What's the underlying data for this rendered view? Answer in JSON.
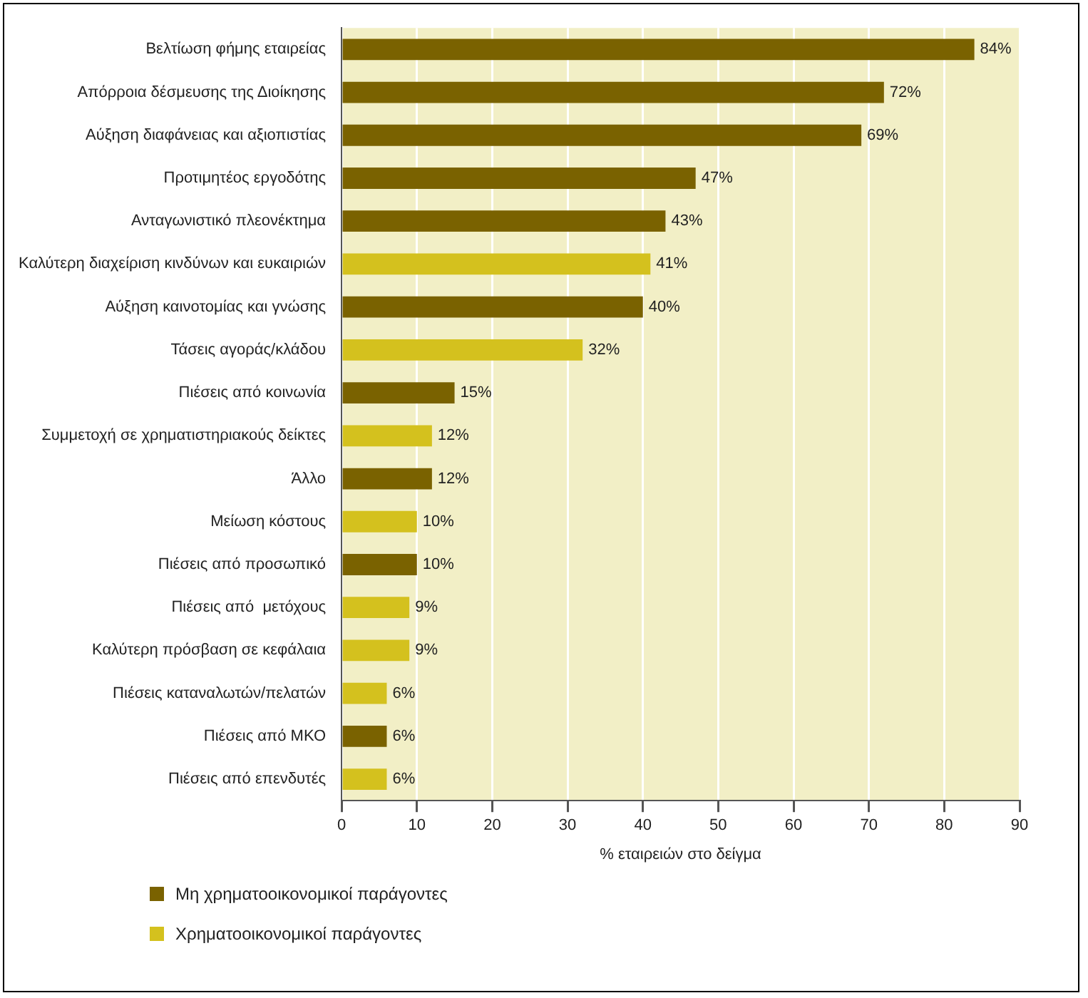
{
  "chart_data": {
    "type": "bar",
    "orientation": "horizontal",
    "xlabel": "% εταιρειών στο δείγμα",
    "categories": [
      "Βελτίωση φήμης εταιρείας",
      "Απόρροια δέσμευσης της Διοίκησης",
      "Αύξηση διαφάνειας και αξιοπιστίας",
      "Προτιμητέος εργοδότης",
      "Ανταγωνιστικό πλεονέκτημα",
      "Καλύτερη διαχείριση κινδύνων και ευκαιριών",
      "Αύξηση καινοτομίας και γνώσης",
      "Τάσεις αγοράς/κλάδου",
      "Πιέσεις από κοινωνία",
      "Συμμετοχή σε χρηματιστηριακούς δείκτες",
      "Άλλο",
      "Μείωση κόστους",
      "Πιέσεις από προσωπικό",
      "Πιέσεις από  μετόχους",
      "Καλύτερη πρόσβαση σε κεφάλαια",
      "Πιέσεις καταναλωτών/πελατών",
      "Πιέσεις από ΜΚΟ",
      "Πιέσεις από επενδυτές"
    ],
    "series": [
      {
        "name": "Μη χρηματοοικονομικοί παράγοντες",
        "color": "#7a6200",
        "values": [
          84,
          72,
          69,
          47,
          43,
          null,
          40,
          null,
          15,
          null,
          12,
          null,
          10,
          null,
          null,
          null,
          6,
          null
        ],
        "value_labels": [
          "84%",
          "72%",
          "69%",
          "47%",
          "43%",
          null,
          "40%",
          null,
          "15%",
          null,
          "12%",
          null,
          "10%",
          null,
          null,
          null,
          "6%",
          null
        ]
      },
      {
        "name": "Χρηματοοικονομικοί παράγοντες",
        "color": "#d4c11e",
        "values": [
          null,
          null,
          null,
          null,
          null,
          41,
          null,
          32,
          null,
          12,
          null,
          10,
          null,
          9,
          9,
          6,
          null,
          6
        ],
        "value_labels": [
          null,
          null,
          null,
          null,
          null,
          "41%",
          null,
          "32%",
          null,
          "12%",
          null,
          "10%",
          null,
          "9%",
          "9%",
          "6%",
          null,
          "6%"
        ]
      }
    ],
    "xlim": [
      0,
      90
    ],
    "xticks": [
      0,
      10,
      20,
      30,
      40,
      50,
      60,
      70,
      80,
      90
    ],
    "grid": "x",
    "legend": "bottom left"
  }
}
